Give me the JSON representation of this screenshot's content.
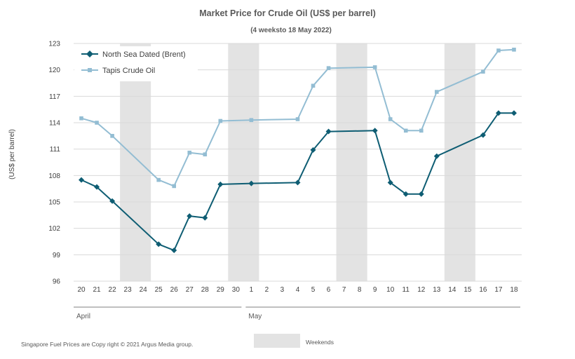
{
  "chart_data": {
    "type": "line",
    "title": "Market Price for Crude  Oil (US$ per barrel)",
    "subtitle": "(4 weeksto 18 May 2022)",
    "ylabel": "(US$ per barrel)",
    "xlabel": "",
    "ylim": [
      96,
      123
    ],
    "yticks": [
      "96",
      "99",
      "102",
      "105",
      "108",
      "111",
      "114",
      "117",
      "120",
      "123"
    ],
    "categories": [
      "20",
      "21",
      "22",
      "23",
      "24",
      "25",
      "26",
      "27",
      "28",
      "29",
      "30",
      "1",
      "2",
      "3",
      "4",
      "5",
      "6",
      "7",
      "8",
      "9",
      "10",
      "11",
      "12",
      "13",
      "14",
      "15",
      "16",
      "17",
      "18"
    ],
    "month_labels": [
      {
        "label": "April",
        "start": "20",
        "end": "30"
      },
      {
        "label": "May",
        "start": "1",
        "end": "18"
      }
    ],
    "weekend_shading": [
      [
        "23",
        "24"
      ],
      [
        "30",
        "1"
      ],
      [
        "7",
        "8"
      ],
      [
        "14",
        "15"
      ]
    ],
    "grid": true,
    "legend_position": "top-left",
    "series": [
      {
        "name": "North Sea Dated (Brent)",
        "color": "#0e5d73",
        "marker": "diamond",
        "values": [
          107.5,
          106.7,
          105.1,
          null,
          null,
          100.2,
          99.5,
          103.4,
          103.2,
          107.0,
          null,
          107.1,
          null,
          null,
          107.2,
          110.9,
          113.0,
          null,
          null,
          113.1,
          107.2,
          105.9,
          105.9,
          110.2,
          null,
          null,
          112.6,
          115.1,
          115.1
        ]
      },
      {
        "name": "Tapis Crude Oil",
        "color": "#93bdd3",
        "marker": "square",
        "values": [
          114.5,
          114.0,
          112.5,
          null,
          null,
          107.5,
          106.8,
          110.6,
          110.4,
          114.2,
          null,
          114.3,
          null,
          null,
          114.4,
          118.2,
          120.2,
          null,
          null,
          120.3,
          114.4,
          113.1,
          113.1,
          117.5,
          null,
          null,
          119.8,
          122.2,
          122.3
        ]
      }
    ],
    "weekends_label": "Weekends",
    "footer": "Singapore  Fuel Prices are  Copy right © 2021 Argus Media group."
  },
  "colors": {
    "weekend_fill": "#e3e3e3",
    "grid": "#d9d9d9",
    "axis": "#7f7f7f"
  }
}
